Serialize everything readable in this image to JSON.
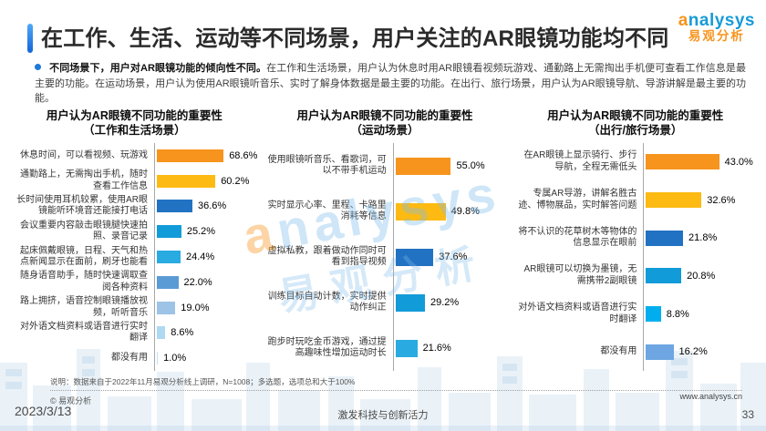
{
  "header": {
    "title": "在工作、生活、运动等不同场景，用户关注的AR眼镜功能均不同",
    "logo": {
      "brand_first_letter": "a",
      "brand_rest": "nalysys",
      "brand_cn": "易观分析"
    }
  },
  "summary": {
    "bold": "不同场景下，用户对AR眼镜功能的倾向性不同。",
    "text": "在工作和生活场景，用户认为休息时用AR眼镜看视频玩游戏、通勤路上无需掏出手机便可查看工作信息是最主要的功能。在运动场景，用户认为使用AR眼镜听音乐、实时了解身体数据是最主要的功能。在出行、旅行场景，用户认为AR眼镜导航、导游讲解是最主要的功能。"
  },
  "colors": {
    "accent_blue": "#1E78D7",
    "logo_blue": "#179BD7",
    "logo_orange": "#F7941E"
  },
  "chart_data": [
    {
      "type": "bar",
      "id": "work-life",
      "orientation": "horizontal",
      "title": "用户认为AR眼镜不同功能的重要性（工作和生活场景）",
      "title_line1": "用户认为AR眼镜不同功能的重要性",
      "title_line2": "（工作和生活场景）",
      "xlabel": "",
      "ylabel": "",
      "xlim": [
        0,
        75
      ],
      "grid": false,
      "categories": [
        "休息时间，可以看视频、玩游戏",
        "通勤路上，无需掏出手机，随时查看工作信息",
        "长时间使用耳机较累，使用AR眼镜能听环境音还能接打电话",
        "会议重要内容敲击眼镜腿快速拍照、录音记录",
        "起床佩戴眼镜，日程、天气和热点新闻显示在面前，刷牙也能看",
        "随身语音助手，随时快速调取查阅各种资料",
        "路上拥挤，语音控制眼镜播放视频，听听音乐",
        "对外语文档资料或语音进行实时翻译",
        "都没有用"
      ],
      "values": [
        68.6,
        60.2,
        36.6,
        25.2,
        24.4,
        22.0,
        19.0,
        8.6,
        1.0
      ],
      "value_labels": [
        "68.6%",
        "60.2%",
        "36.6%",
        "25.2%",
        "24.4%",
        "22.0%",
        "19.0%",
        "8.6%",
        "1.0%"
      ],
      "bar_colors": [
        "#F7941E",
        "#FDBA12",
        "#2272C3",
        "#129BD9",
        "#29ABE2",
        "#5B9BD5",
        "#9DC3E6",
        "#AED9F2",
        "#BFE3F7"
      ]
    },
    {
      "type": "bar",
      "id": "sports",
      "orientation": "horizontal",
      "title": "用户认为AR眼镜不同功能的重要性（运动场景）",
      "title_line1": "用户认为AR眼镜不同功能的重要性",
      "title_line2": "（运动场景）",
      "xlabel": "",
      "ylabel": "",
      "xlim": [
        0,
        57
      ],
      "grid": false,
      "categories": [
        "使用眼镜听音乐、看歌词，可以不带手机运动",
        "实时显示心率、里程、卡路里消耗等信息",
        "虚拟私教，跟着做动作同时可看到指导视频",
        "训练目标自动计数，实时提供动作纠正",
        "跑步时玩吃金币游戏，通过提高趣味性增加运动时长"
      ],
      "values": [
        55.0,
        49.8,
        37.6,
        29.2,
        21.6
      ],
      "value_labels": [
        "55.0%",
        "49.8%",
        "37.6%",
        "29.2%",
        "21.6%"
      ],
      "bar_colors": [
        "#F7941E",
        "#FDBA12",
        "#2272C3",
        "#129BD9",
        "#29ABE2"
      ]
    },
    {
      "type": "bar",
      "id": "travel",
      "orientation": "horizontal",
      "title": "用户认为AR眼镜不同功能的重要性（出行/旅行场景）",
      "title_line1": "用户认为AR眼镜不同功能的重要性",
      "title_line2": "（出行/旅行场景）",
      "xlabel": "",
      "ylabel": "",
      "xlim": [
        0,
        45
      ],
      "grid": false,
      "categories": [
        "在AR眼镜上显示骑行、步行导航，全程无需低头",
        "专属AR导游，讲解名胜古迹、博物展品，实时解答问题",
        "将不认识的花草树木等物体的信息显示在眼前",
        "AR眼镜可以切换为墨镜，无需携带2副眼镜",
        "对外语文档资料或语音进行实时翻译",
        "都没有用"
      ],
      "values": [
        43.0,
        32.6,
        21.8,
        20.8,
        8.8,
        16.2
      ],
      "value_labels": [
        "43.0%",
        "32.6%",
        "21.8%",
        "20.8%",
        "8.8%",
        "16.2%"
      ],
      "bar_colors": [
        "#F7941E",
        "#FDBA12",
        "#2272C3",
        "#129BD9",
        "#00AEEF",
        "#6EA6E3"
      ]
    }
  ],
  "watermark": {
    "brand_first_letter": "a",
    "brand_rest": "nalysys",
    "brand_cn": "易观分析"
  },
  "footer": {
    "note": "说明：数据来自于2022年11月易观分析线上调研，N=1008；多选题，选项总和大于100%",
    "copyright": "© 易观分析",
    "site": "www.analysys.cn",
    "date": "2023/3/13",
    "slogan": "激发科技与创新活力",
    "page_number": "33"
  }
}
